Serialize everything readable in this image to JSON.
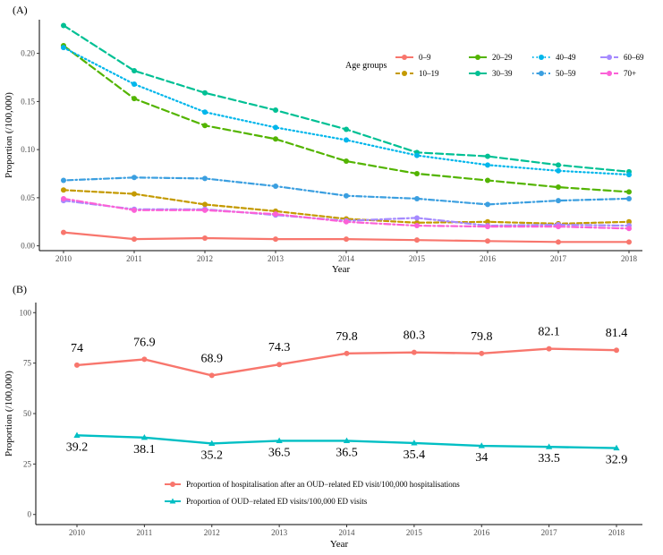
{
  "chart_data": [
    {
      "panel": "(A)",
      "type": "line",
      "xlabel": "Year",
      "ylabel": "Proportion (/100,000)",
      "x": [
        2010,
        2011,
        2012,
        2013,
        2014,
        2015,
        2016,
        2017,
        2018
      ],
      "ylim": [
        -0.005,
        0.235
      ],
      "yticks": [
        0.0,
        0.05,
        0.1,
        0.15,
        0.2
      ],
      "ytick_labels": [
        "0.00",
        "0.05",
        "0.10",
        "0.15",
        "0.20"
      ],
      "legend_title": "Age groups",
      "legend_position": "top-right",
      "series": [
        {
          "name": "0–9",
          "color": "#F8766D",
          "dash": "solid",
          "values": [
            0.014,
            0.007,
            0.008,
            0.007,
            0.007,
            0.006,
            0.005,
            0.004,
            0.004
          ]
        },
        {
          "name": "10–19",
          "color": "#C49A00",
          "dash": "dashed",
          "values": [
            0.058,
            0.054,
            0.043,
            0.036,
            0.028,
            0.024,
            0.025,
            0.023,
            0.025
          ]
        },
        {
          "name": "20–29",
          "color": "#53B400",
          "dash": "longdash",
          "values": [
            0.208,
            0.153,
            0.125,
            0.111,
            0.088,
            0.075,
            0.068,
            0.061,
            0.056
          ]
        },
        {
          "name": "30–39",
          "color": "#00C094",
          "dash": "longdash",
          "values": [
            0.229,
            0.182,
            0.159,
            0.141,
            0.121,
            0.097,
            0.093,
            0.084,
            0.077
          ]
        },
        {
          "name": "40–49",
          "color": "#00B6EB",
          "dash": "dotted",
          "values": [
            0.206,
            0.168,
            0.139,
            0.123,
            0.11,
            0.094,
            0.084,
            0.078,
            0.074
          ]
        },
        {
          "name": "50–59",
          "color": "#3B9FE0",
          "dash": "dotdash",
          "values": [
            0.068,
            0.071,
            0.07,
            0.062,
            0.052,
            0.049,
            0.043,
            0.047,
            0.049
          ]
        },
        {
          "name": "60–69",
          "color": "#A58AFF",
          "dash": "twodash",
          "values": [
            0.047,
            0.038,
            0.038,
            0.032,
            0.026,
            0.029,
            0.021,
            0.022,
            0.021
          ]
        },
        {
          "name": "70+",
          "color": "#FB61D7",
          "dash": "twodash",
          "values": [
            0.049,
            0.037,
            0.037,
            0.033,
            0.025,
            0.021,
            0.02,
            0.02,
            0.018
          ]
        }
      ]
    },
    {
      "panel": "(B)",
      "type": "line",
      "xlabel": "Year",
      "ylabel": "Proportion (/100,000)",
      "x": [
        2010,
        2011,
        2012,
        2013,
        2014,
        2015,
        2016,
        2017,
        2018
      ],
      "ylim": [
        -5,
        105
      ],
      "yticks": [
        0,
        25,
        50,
        75,
        100
      ],
      "ytick_labels": [
        "0",
        "25",
        "50",
        "75",
        "100"
      ],
      "legend_position": "bottom-left",
      "series": [
        {
          "name": "Proportion of hospitalisation after an OUD−related ED visit/100,000 hospitalisations",
          "color": "#F8766D",
          "marker": "circle",
          "values": [
            74,
            76.9,
            68.9,
            74.3,
            79.8,
            80.3,
            79.8,
            82.1,
            81.4
          ],
          "labels": [
            "74",
            "76.9",
            "68.9",
            "74.3",
            "79.8",
            "80.3",
            "79.8",
            "82.1",
            "81.4"
          ]
        },
        {
          "name": "Proportion of OUD−related ED visits/100,000 ED visits",
          "color": "#00BFC4",
          "marker": "triangle",
          "values": [
            39.2,
            38.1,
            35.2,
            36.5,
            36.5,
            35.4,
            34,
            33.5,
            32.9
          ],
          "labels": [
            "39.2",
            "38.1",
            "35.2",
            "36.5",
            "36.5",
            "35.4",
            "34",
            "33.5",
            "32.9"
          ]
        }
      ]
    }
  ]
}
